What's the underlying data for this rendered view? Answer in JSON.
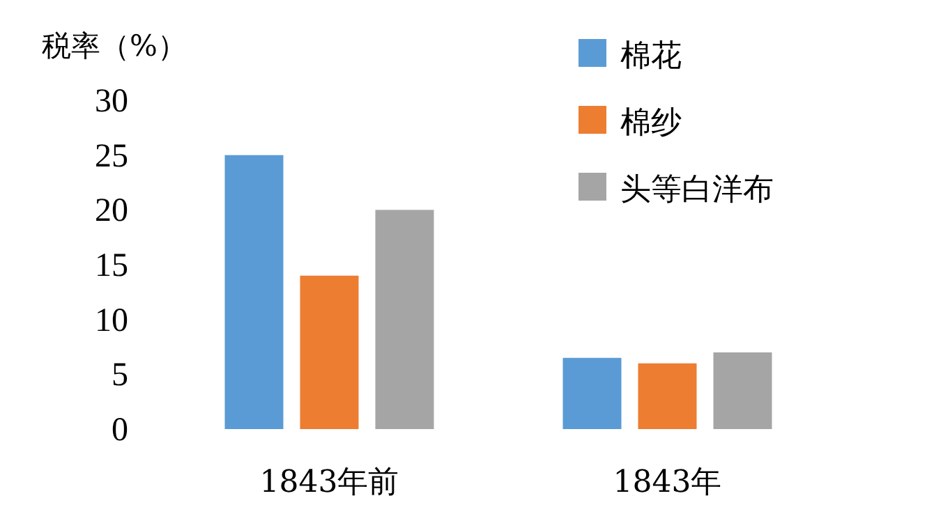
{
  "chart_data": {
    "type": "bar",
    "ylabel": "税率（%）",
    "categories": [
      "1843年前",
      "1843年"
    ],
    "series": [
      {
        "name": "棉花",
        "color": "#5b9bd5",
        "values": [
          25,
          6.5
        ]
      },
      {
        "name": "棉纱",
        "color": "#ed7d31",
        "values": [
          14,
          6
        ]
      },
      {
        "name": "头等白洋布",
        "color": "#a5a5a5",
        "values": [
          20,
          7
        ]
      }
    ],
    "ylim": [
      0,
      30
    ],
    "yticks": [
      0,
      5,
      10,
      15,
      20,
      25,
      30
    ],
    "legend": "top right",
    "grid": false
  }
}
